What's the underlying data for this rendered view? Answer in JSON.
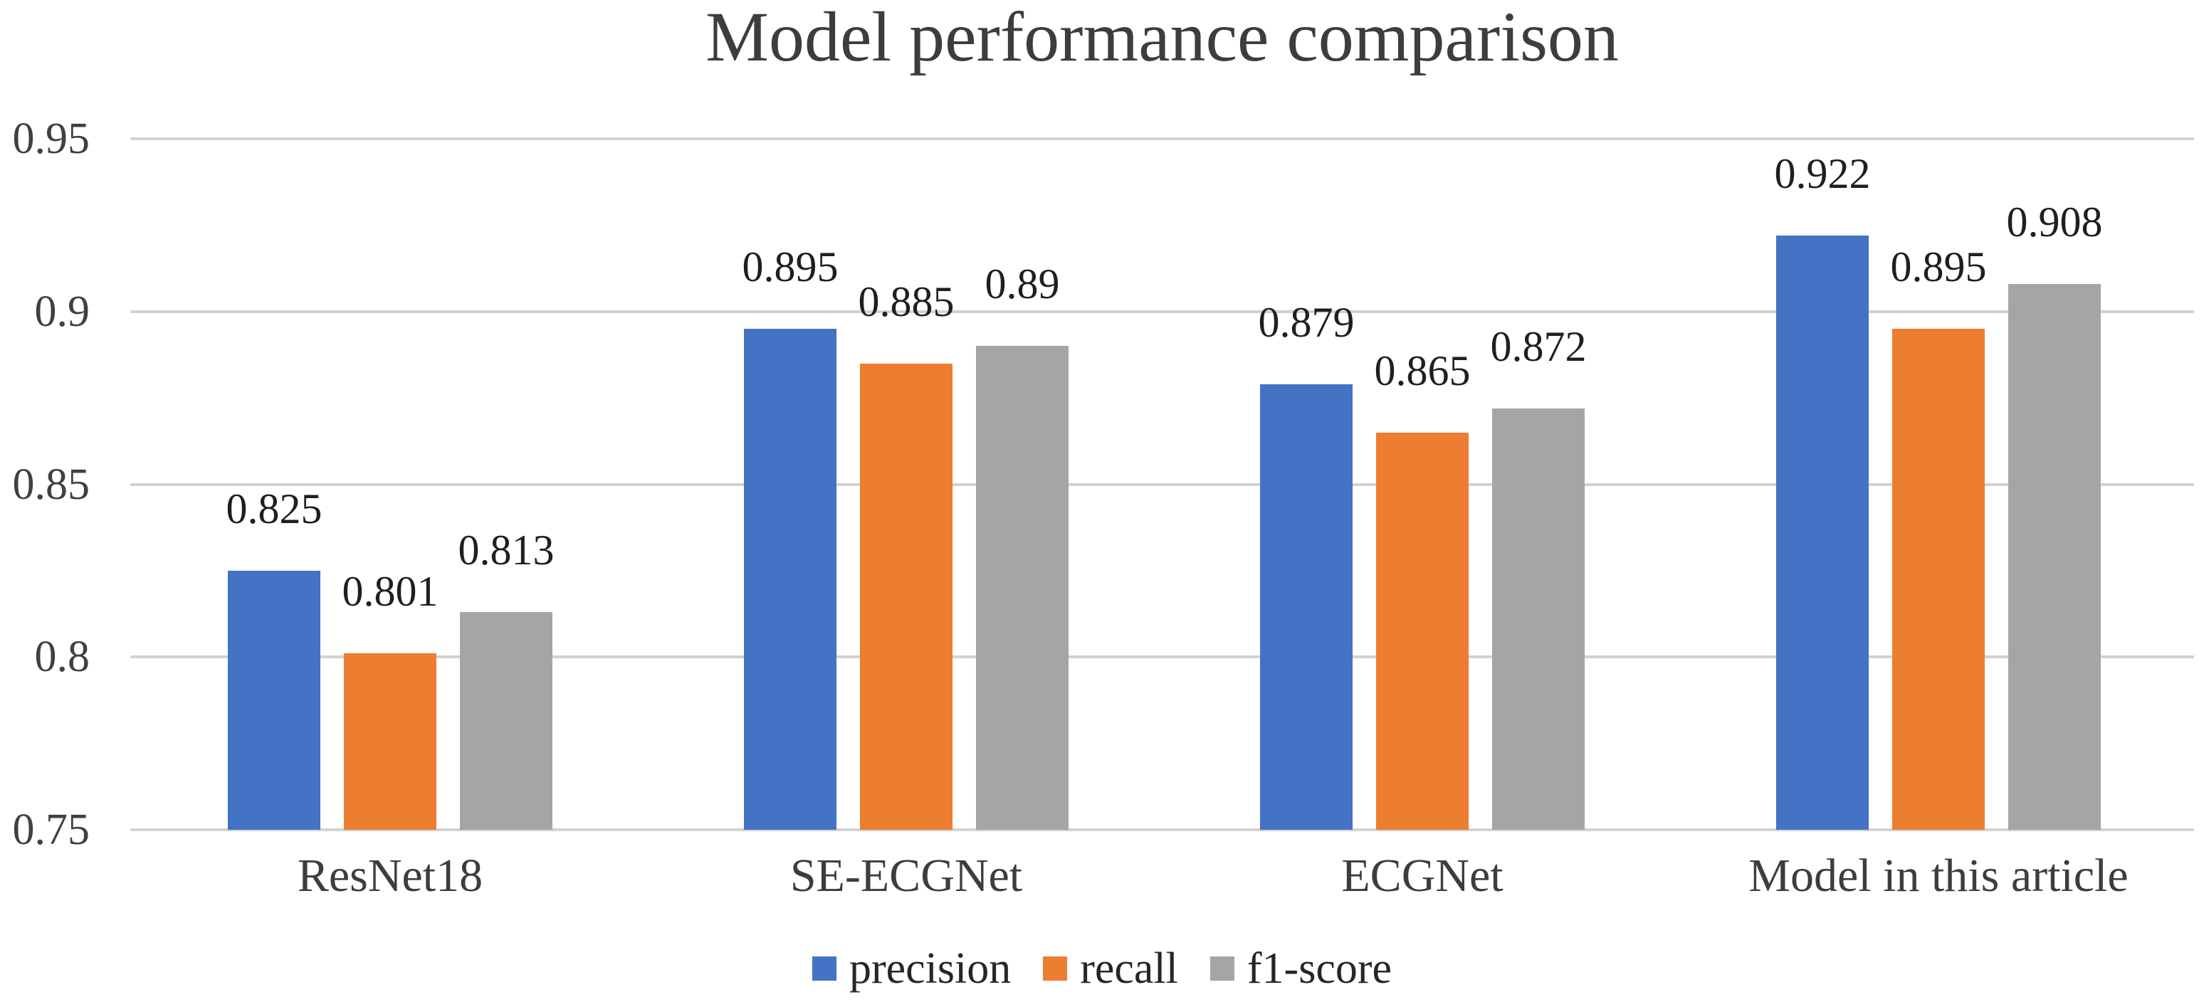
{
  "chart_data": {
    "type": "bar",
    "title": "Model performance comparison",
    "categories": [
      "ResNet18",
      "SE-ECGNet",
      "ECGNet",
      "Model in this article"
    ],
    "series": [
      {
        "name": "precision",
        "color": "#4472C4",
        "values": [
          0.825,
          0.895,
          0.879,
          0.922
        ],
        "labels": [
          "0.825",
          "0.895",
          "0.879",
          "0.922"
        ]
      },
      {
        "name": "recall",
        "color": "#ED7D31",
        "values": [
          0.801,
          0.885,
          0.865,
          0.895
        ],
        "labels": [
          "0.801",
          "0.885",
          "0.865",
          "0.895"
        ]
      },
      {
        "name": "f1-score",
        "color": "#A5A5A5",
        "values": [
          0.813,
          0.89,
          0.872,
          0.908
        ],
        "labels": [
          "0.813",
          "0.89",
          "0.872",
          "0.908"
        ]
      }
    ],
    "ylim": [
      0.75,
      0.95
    ],
    "yticks": [
      0.95,
      0.9,
      0.85,
      0.8,
      0.75
    ],
    "ytick_labels": [
      "0.95",
      "0.9",
      "0.85",
      "0.8",
      "0.75"
    ],
    "grid": true,
    "data_labels_shown": true,
    "legend_position": "bottom",
    "gridline_color": "#d2d2d2"
  }
}
